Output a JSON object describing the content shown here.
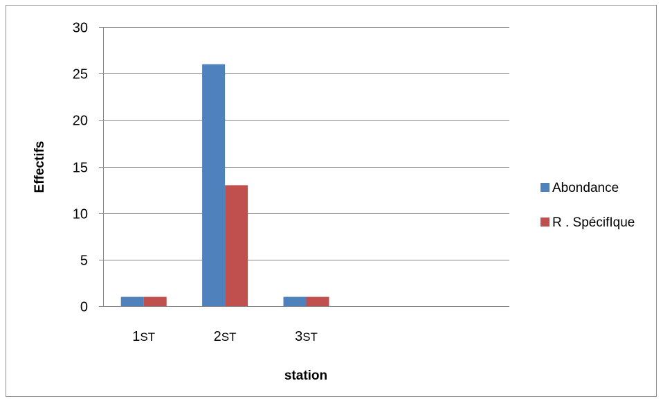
{
  "chart_data": {
    "type": "bar",
    "categories": [
      "1ST",
      "2ST",
      "3ST",
      "",
      ""
    ],
    "series": [
      {
        "name": "Abondance",
        "values": [
          1,
          26,
          1,
          null,
          null
        ],
        "color": "#4f81bd"
      },
      {
        "name": "R . SpécifIque",
        "values": [
          1,
          13,
          1,
          null,
          null
        ],
        "color": "#c0504d"
      }
    ],
    "title": "",
    "xlabel": "station",
    "ylabel": "Effectifs",
    "ylim": [
      0,
      30
    ],
    "yticks": [
      0,
      5,
      10,
      15,
      20,
      25,
      30
    ],
    "grid": true,
    "legend_position": "right"
  }
}
